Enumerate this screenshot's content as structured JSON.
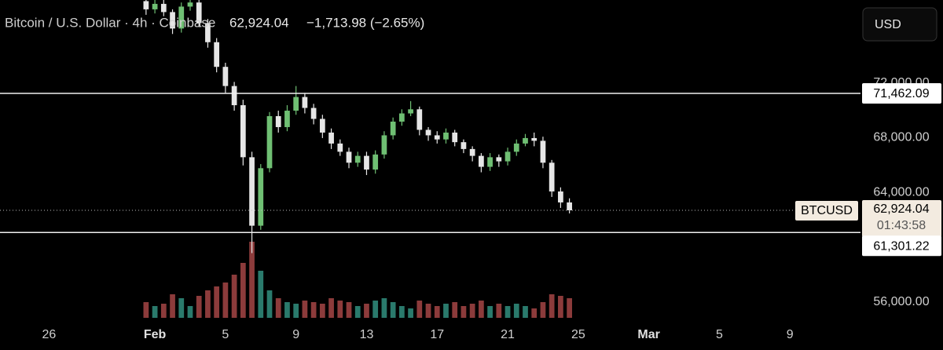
{
  "header": {
    "symbol": "Bitcoin / U.S. Dollar · 4h · Coinbase",
    "price": "62,924.04",
    "change": "−1,713.98 (−2.65%)",
    "currency": "USD"
  },
  "chart_data": {
    "type": "candlestick",
    "x": [
      -0.5,
      0,
      0.5,
      1,
      1.5,
      2,
      2.5,
      3,
      3.5,
      4,
      4.5,
      5,
      5.5,
      6,
      6.5,
      7,
      7.5,
      8,
      8.5,
      9,
      9.5,
      10,
      10.5,
      11,
      11.5,
      12,
      12.5,
      13,
      13.5,
      14,
      14.5,
      15,
      15.5,
      16,
      16.5,
      17,
      17.5,
      18,
      18.5,
      19,
      19.5,
      20,
      20.5,
      21,
      21.5,
      22,
      22.5,
      23,
      23.5
    ],
    "open": [
      78200,
      77600,
      78000,
      77400,
      76200,
      77800,
      78100,
      76600,
      75200,
      73400,
      72000,
      70600,
      66800,
      61800,
      66000,
      69800,
      69000,
      70200,
      71200,
      70400,
      69600,
      68600,
      67800,
      67200,
      66400,
      66900,
      65900,
      67000,
      68400,
      69400,
      70000,
      70300,
      68800,
      68400,
      68100,
      68600,
      67900,
      67400,
      66900,
      66100,
      66800,
      66500,
      67200,
      67800,
      68200,
      68000,
      66400,
      64300,
      63500
    ],
    "high": [
      78600,
      78300,
      78300,
      77600,
      78100,
      78500,
      78300,
      76900,
      75500,
      73700,
      72300,
      71000,
      67200,
      66300,
      70100,
      70200,
      70600,
      72000,
      71500,
      70700,
      69900,
      68900,
      68100,
      67500,
      67200,
      67200,
      67300,
      68700,
      69700,
      70300,
      70900,
      70500,
      69000,
      68700,
      68900,
      68800,
      68100,
      67600,
      67100,
      67100,
      67000,
      67500,
      68100,
      68500,
      68600,
      68300,
      66600,
      64600,
      63800
    ],
    "low": [
      77200,
      77300,
      77100,
      75800,
      75900,
      77500,
      76300,
      74800,
      73000,
      71500,
      70200,
      66200,
      59800,
      61500,
      65700,
      68600,
      68700,
      69900,
      70000,
      69200,
      68200,
      67400,
      66900,
      66000,
      66100,
      65500,
      65600,
      66700,
      68100,
      69100,
      69800,
      68400,
      68000,
      67800,
      67800,
      67600,
      67100,
      66500,
      65700,
      65800,
      66100,
      66200,
      66900,
      67600,
      67600,
      66000,
      63900,
      63100,
      62700
    ],
    "close": [
      77600,
      78000,
      77400,
      76200,
      77800,
      78100,
      76600,
      75200,
      73400,
      72000,
      70600,
      66800,
      61800,
      66000,
      69800,
      69000,
      70200,
      71200,
      70400,
      69600,
      68600,
      67800,
      67200,
      66400,
      66900,
      65900,
      67000,
      68400,
      69400,
      70000,
      70300,
      68800,
      68400,
      68100,
      68600,
      67900,
      67400,
      66900,
      66100,
      66800,
      66500,
      67200,
      67800,
      68200,
      68000,
      66400,
      64300,
      63500,
      62924.04
    ],
    "volume": [
      20,
      15,
      18,
      30,
      25,
      15,
      28,
      35,
      40,
      45,
      55,
      70,
      97,
      60,
      35,
      25,
      20,
      18,
      22,
      20,
      18,
      25,
      22,
      20,
      15,
      18,
      22,
      25,
      20,
      15,
      12,
      22,
      18,
      15,
      18,
      20,
      15,
      18,
      22,
      15,
      18,
      15,
      18,
      15,
      12,
      20,
      30,
      28,
      25
    ],
    "volume_lim": [
      0,
      100
    ],
    "up_color": "#6fbf73",
    "down_color": "#e6e6e6",
    "volume_up_color": "#2a7a6c",
    "volume_down_color": "#8c3b3b",
    "xlim": [
      -8.78,
      40
    ],
    "ylim": [
      52723,
      78282
    ],
    "xticks": [
      {
        "value": -6,
        "label": "26"
      },
      {
        "value": 0,
        "label": "Feb"
      },
      {
        "value": 4,
        "label": "5"
      },
      {
        "value": 8,
        "label": "9"
      },
      {
        "value": 12,
        "label": "13"
      },
      {
        "value": 16,
        "label": "17"
      },
      {
        "value": 20,
        "label": "21"
      },
      {
        "value": 24,
        "label": "25"
      },
      {
        "value": 28,
        "label": "Mar"
      },
      {
        "value": 32,
        "label": "5"
      },
      {
        "value": 36,
        "label": "9"
      }
    ],
    "yticks": [
      {
        "value": 56000,
        "label": "56,000.00"
      },
      {
        "value": 64000,
        "label": "64,000.00"
      },
      {
        "value": 68000,
        "label": "68,000.00"
      },
      {
        "value": 72000,
        "label": "72,000.00"
      }
    ],
    "levels": [
      {
        "value": 71462.09,
        "label": "71,462.09"
      },
      {
        "value": 61301.22,
        "label": "61,301.22"
      }
    ],
    "price_line": {
      "value": 62924.04,
      "label": "62,924.04",
      "symbol": "BTCUSD",
      "countdown": "01:43:58"
    }
  }
}
